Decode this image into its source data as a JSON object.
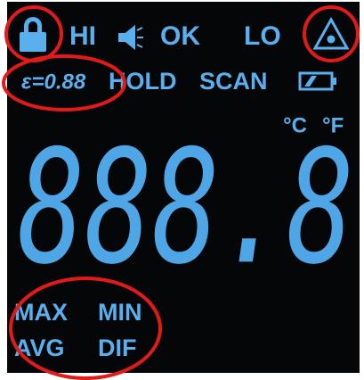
{
  "indicators": {
    "top": [
      "HI",
      "OK",
      "LO"
    ],
    "middle": [
      "HOLD",
      "SCAN"
    ],
    "emissivity": "ε=0.88",
    "units": [
      "°C",
      "°F"
    ],
    "stats": [
      "MAX",
      "MIN",
      "AVG",
      "DIF"
    ]
  },
  "reading": "888.8"
}
